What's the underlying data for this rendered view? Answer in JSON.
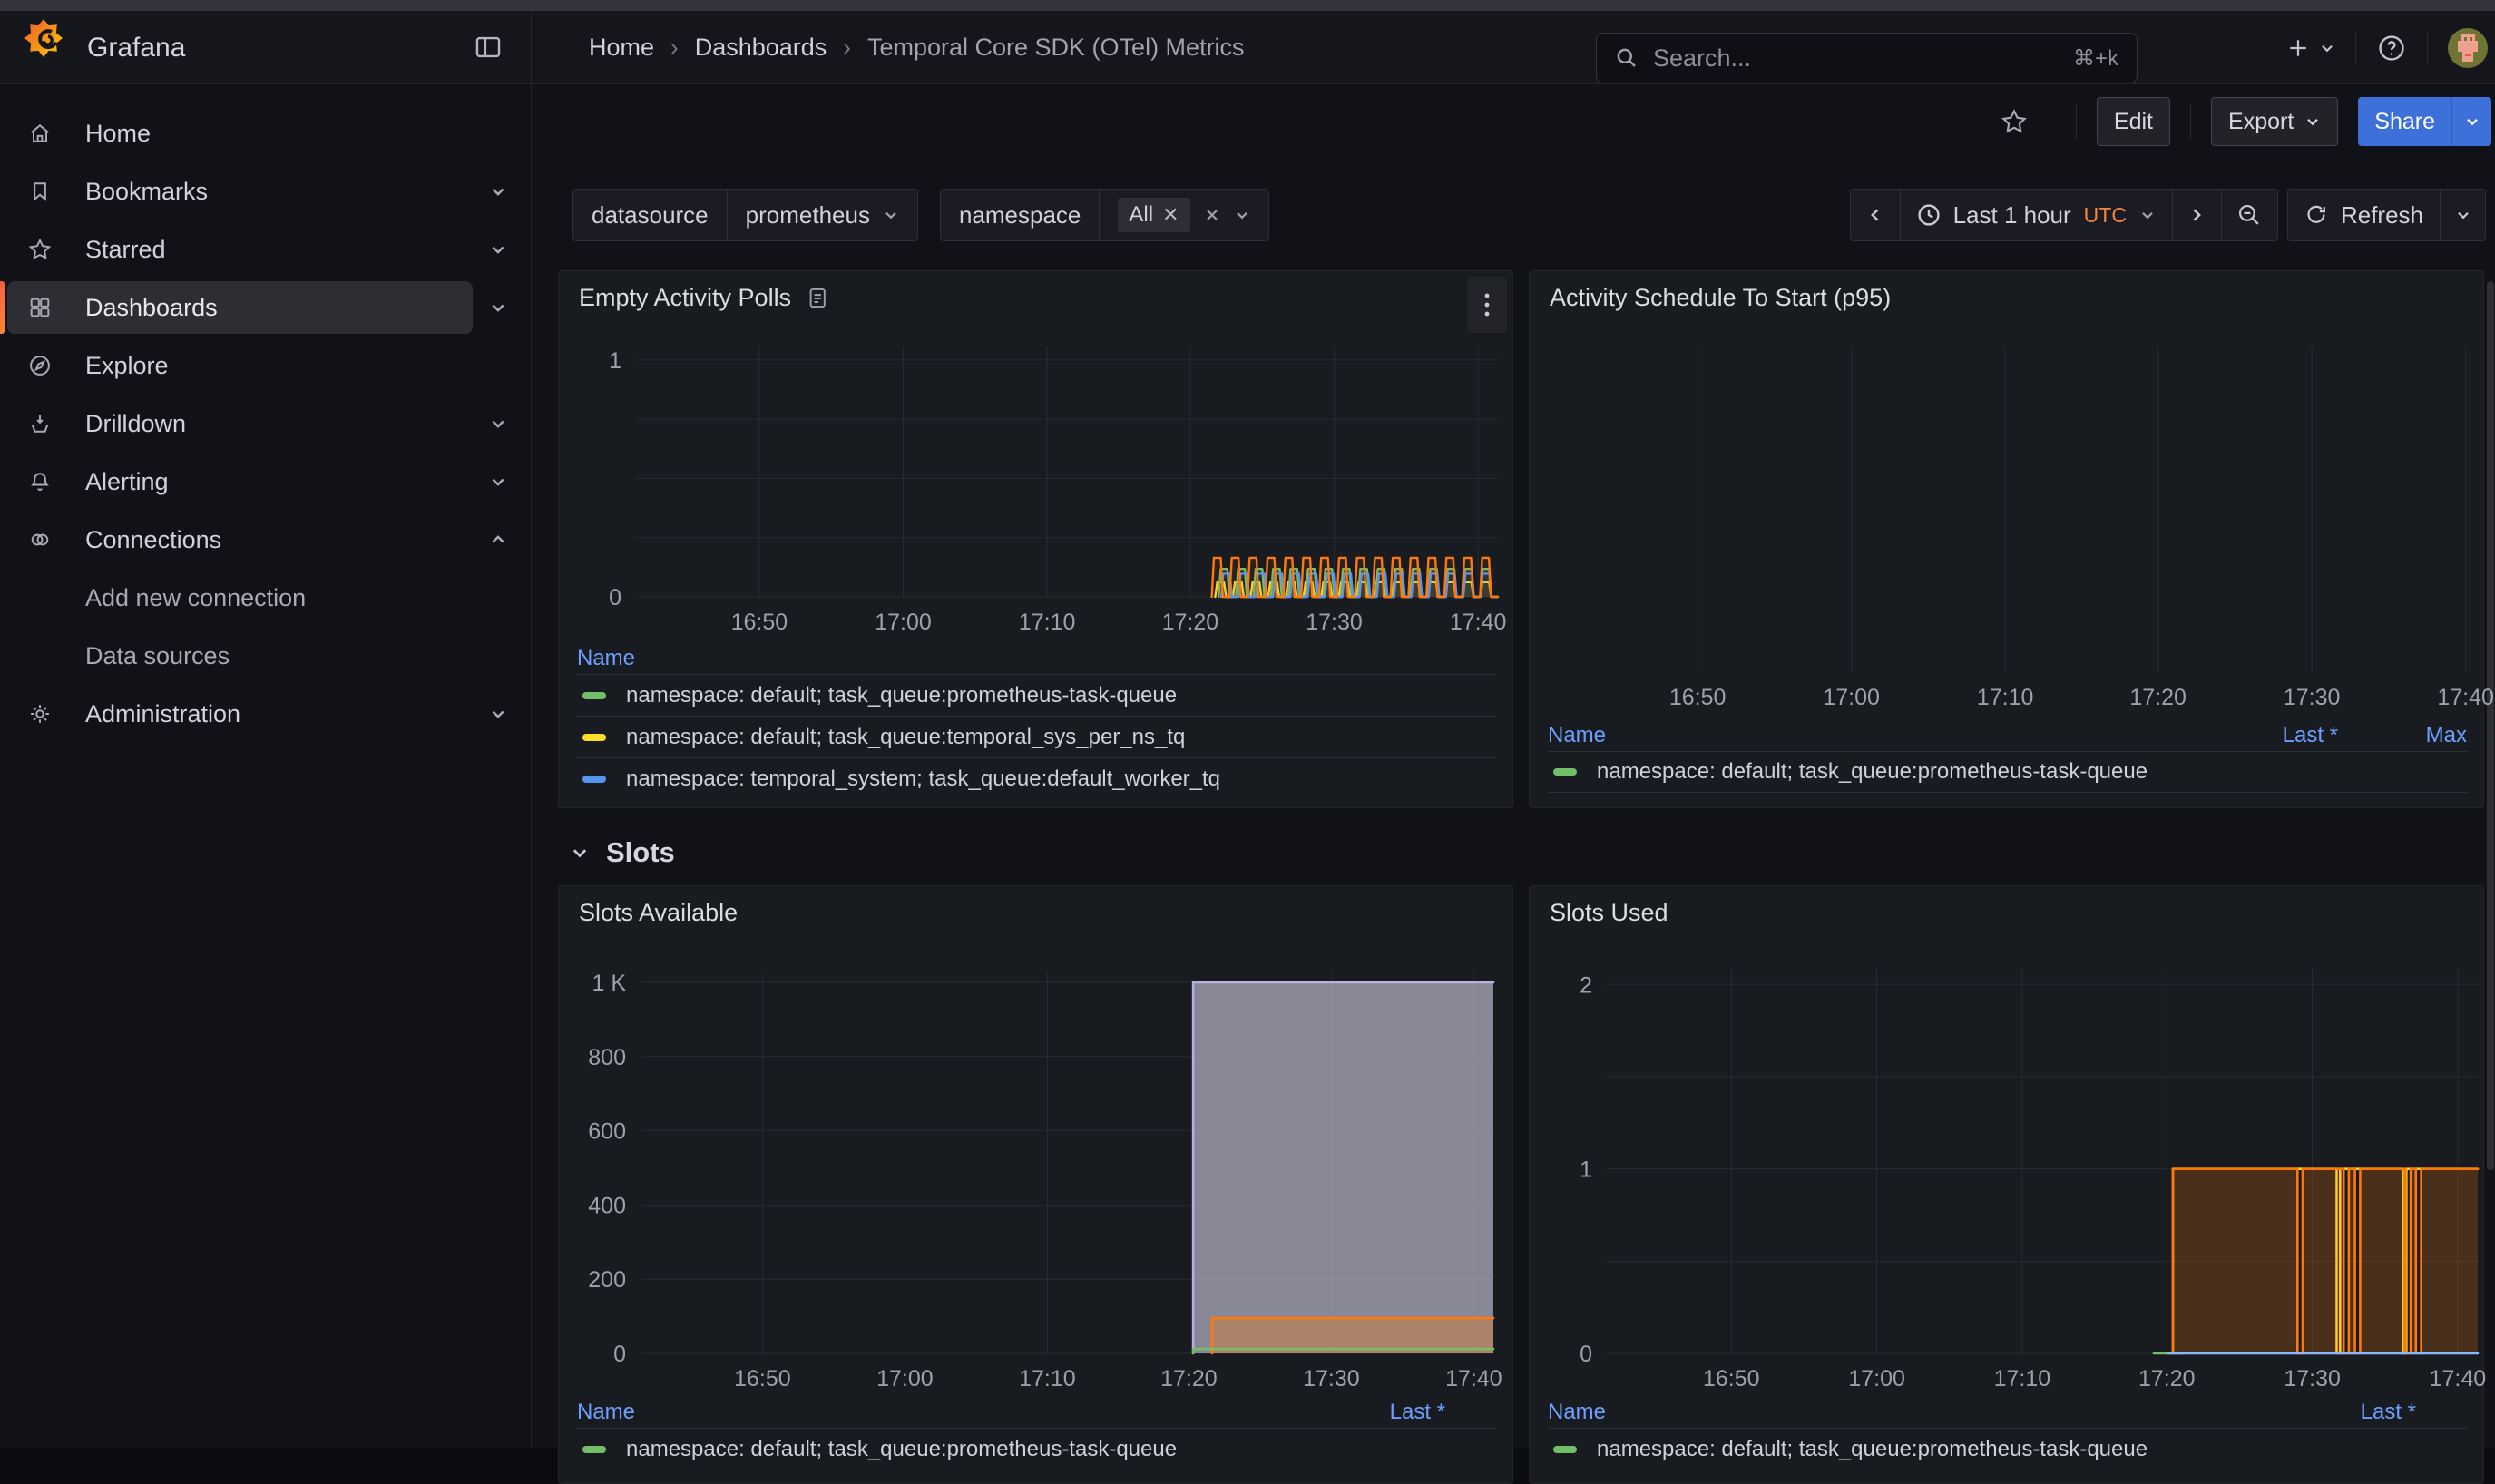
{
  "chrome": {
    "brand": "Grafana",
    "breadcrumbs": [
      "Home",
      "Dashboards",
      "Temporal Core SDK (OTel) Metrics"
    ],
    "breadcrumb_separator": "›",
    "search": {
      "placeholder": "Search...",
      "shortcut": "⌘+k"
    }
  },
  "toolbar": {
    "edit": "Edit",
    "export": "Export",
    "share": "Share"
  },
  "filters": {
    "datasource_label": "datasource",
    "datasource_value": "prometheus",
    "namespace_label": "namespace",
    "namespace_value": "All",
    "time_range": "Last 1 hour",
    "timezone": "UTC",
    "refresh_label": "Refresh"
  },
  "sidebar": {
    "items": [
      {
        "label": "Home"
      },
      {
        "label": "Bookmarks"
      },
      {
        "label": "Starred"
      },
      {
        "label": "Dashboards"
      },
      {
        "label": "Explore"
      },
      {
        "label": "Drilldown"
      },
      {
        "label": "Alerting"
      },
      {
        "label": "Connections"
      },
      {
        "label": "Add new connection"
      },
      {
        "label": "Data sources"
      },
      {
        "label": "Administration"
      }
    ]
  },
  "sections": {
    "slots": "Slots"
  },
  "colors": {
    "accent_blue": "#3D71D9",
    "link": "#6E9FFF",
    "orange": "#FF780A",
    "green": "#73BF69",
    "yellow": "#FADE2A",
    "blue": "#5794F2",
    "light_blue": "#8AB8FF",
    "purple": "#B8B0E0",
    "sidebar_accent": "#FF8833"
  },
  "chart_data": [
    {
      "type": "line",
      "title": "Empty Activity Polls",
      "ylim": [
        0,
        1.053
      ],
      "y_ticks": [
        [
          1,
          "1"
        ],
        [
          0,
          "0"
        ]
      ],
      "h_grid": [
        0,
        0.25,
        0.5,
        0.75,
        1.0
      ],
      "x_ticks": [
        [
          0.143,
          "16:50"
        ],
        [
          0.31,
          "17:00"
        ],
        [
          0.477,
          "17:10"
        ],
        [
          0.643,
          "17:20"
        ],
        [
          0.81,
          "17:30"
        ],
        [
          0.977,
          "17:40"
        ]
      ],
      "series": [
        {
          "color": "#FADE2A",
          "width": 2.4,
          "fill": "rgba(250,222,42,0.07)",
          "pulse": {
            "start": 0.672,
            "end": 1.0,
            "count": 16,
            "high": 0.062
          }
        },
        {
          "color": "#73BF69",
          "width": 2.4,
          "fill": "rgba(115,191,105,0.07)",
          "pulse": {
            "start": 0.676,
            "end": 1.0,
            "count": 16,
            "high": 0.118
          }
        },
        {
          "color": "#5794F2",
          "width": 2.4,
          "fill": "rgba(87,148,242,0.07)",
          "pulse": {
            "start": 0.679,
            "end": 1.0,
            "count": 16,
            "high": 0.098
          }
        },
        {
          "color": "#FF780A",
          "width": 2.4,
          "fill": "rgba(255,120,10,0.08)",
          "pulse": {
            "start": 0.668,
            "end": 1.0,
            "count": 16,
            "high": 0.165
          }
        }
      ],
      "legend": {
        "headers": [
          "Name"
        ],
        "rows": [
          {
            "color": "#73BF69",
            "text": "namespace: default; task_queue:prometheus-task-queue"
          },
          {
            "color": "#FADE2A",
            "text": "namespace: default; task_queue:temporal_sys_per_ns_tq"
          },
          {
            "color": "#5794F2",
            "text": "namespace: temporal_system; task_queue:default_worker_tq"
          }
        ]
      }
    },
    {
      "type": "line",
      "title": "Activity Schedule To Start (p95)",
      "ylim": [
        0,
        1
      ],
      "y_ticks": [],
      "h_grid": [],
      "x_ticks": [
        [
          0.143,
          "16:50"
        ],
        [
          0.31,
          "17:00"
        ],
        [
          0.477,
          "17:10"
        ],
        [
          0.643,
          "17:20"
        ],
        [
          0.81,
          "17:30"
        ],
        [
          0.977,
          "17:40"
        ]
      ],
      "series": [],
      "legend": {
        "headers": [
          "Name",
          "Last *",
          "Max"
        ],
        "rows": [
          {
            "color": "#73BF69",
            "text": "namespace: default; task_queue:prometheus-task-queue"
          }
        ]
      }
    },
    {
      "type": "line",
      "title": "Slots Available",
      "ylim": [
        0,
        1027
      ],
      "y_ticks": [
        [
          1000,
          "1 K"
        ],
        [
          800,
          "800"
        ],
        [
          600,
          "600"
        ],
        [
          400,
          "400"
        ],
        [
          200,
          "200"
        ],
        [
          0,
          "0"
        ]
      ],
      "h_grid": [
        0,
        200,
        400,
        600,
        800,
        1000
      ],
      "x_ticks": [
        [
          0.143,
          "16:50"
        ],
        [
          0.31,
          "17:00"
        ],
        [
          0.477,
          "17:10"
        ],
        [
          0.643,
          "17:20"
        ],
        [
          0.81,
          "17:30"
        ],
        [
          0.977,
          "17:40"
        ]
      ],
      "series": [
        {
          "color": "#B8B0E0",
          "width": 2.6,
          "fill": "rgba(205,201,222,0.62)",
          "points": [
            [
              0.648,
              0
            ],
            [
              0.648,
              1000
            ],
            [
              1,
              1000
            ]
          ]
        },
        {
          "color": "#FF780A",
          "width": 2.6,
          "fill": "rgba(255,120,10,0.30)",
          "points": [
            [
              0.67,
              0
            ],
            [
              0.67,
              95
            ],
            [
              1,
              95
            ]
          ]
        },
        {
          "color": "#73BF69",
          "width": 2.6,
          "points": [
            [
              0.648,
              0
            ],
            [
              0.648,
              12
            ],
            [
              1,
              12
            ]
          ]
        }
      ],
      "legend": {
        "headers": [
          "Name",
          "Last *"
        ],
        "rows": [
          {
            "color": "#73BF69",
            "text": "namespace: default; task_queue:prometheus-task-queue"
          }
        ]
      }
    },
    {
      "type": "line",
      "title": "Slots Used",
      "ylim": [
        0,
        2.09
      ],
      "y_ticks": [
        [
          2,
          "2"
        ],
        [
          1,
          "1"
        ],
        [
          0,
          "0"
        ]
      ],
      "h_grid": [
        0,
        0.5,
        1,
        1.5,
        2
      ],
      "x_ticks": [
        [
          0.143,
          "16:50"
        ],
        [
          0.31,
          "17:00"
        ],
        [
          0.477,
          "17:10"
        ],
        [
          0.643,
          "17:20"
        ],
        [
          0.81,
          "17:30"
        ],
        [
          0.977,
          "17:40"
        ]
      ],
      "series": [
        {
          "color": "#73BF69",
          "width": 2.6,
          "points": [
            [
              0.628,
              0
            ],
            [
              0.666,
              0
            ]
          ]
        },
        {
          "color": "#FADE2A",
          "width": 2.6,
          "points": [
            [
              0.65,
              0
            ],
            [
              0.65,
              1
            ],
            [
              0.838,
              1
            ],
            [
              0.838,
              0
            ],
            [
              0.842,
              0
            ],
            [
              0.842,
              1
            ],
            [
              0.914,
              1
            ],
            [
              0.914,
              0
            ],
            [
              0.918,
              0
            ],
            [
              0.918,
              1
            ],
            [
              1,
              1
            ]
          ]
        },
        {
          "color": "#FF780A",
          "width": 2.6,
          "fill": "rgba(255,120,10,0.22)",
          "points": [
            [
              0.65,
              0
            ],
            [
              0.65,
              1
            ],
            [
              0.793,
              1
            ],
            [
              0.793,
              0
            ],
            [
              0.799,
              0
            ],
            [
              0.799,
              1
            ],
            [
              0.846,
              1
            ],
            [
              0.846,
              0
            ],
            [
              0.852,
              0
            ],
            [
              0.852,
              1
            ],
            [
              0.859,
              1
            ],
            [
              0.859,
              0
            ],
            [
              0.865,
              0
            ],
            [
              0.865,
              1
            ],
            [
              0.917,
              1
            ],
            [
              0.917,
              0
            ],
            [
              0.923,
              0
            ],
            [
              0.923,
              1
            ],
            [
              0.929,
              1
            ],
            [
              0.929,
              0
            ],
            [
              0.935,
              0
            ],
            [
              0.935,
              1
            ],
            [
              1,
              1
            ]
          ]
        },
        {
          "color": "#8AB8FF",
          "width": 2.6,
          "points": [
            [
              0.645,
              0
            ],
            [
              1,
              0
            ]
          ]
        }
      ],
      "legend": {
        "headers": [
          "Name",
          "Last *"
        ],
        "rows": [
          {
            "color": "#73BF69",
            "text": "namespace: default; task_queue:prometheus-task-queue"
          }
        ]
      }
    }
  ]
}
